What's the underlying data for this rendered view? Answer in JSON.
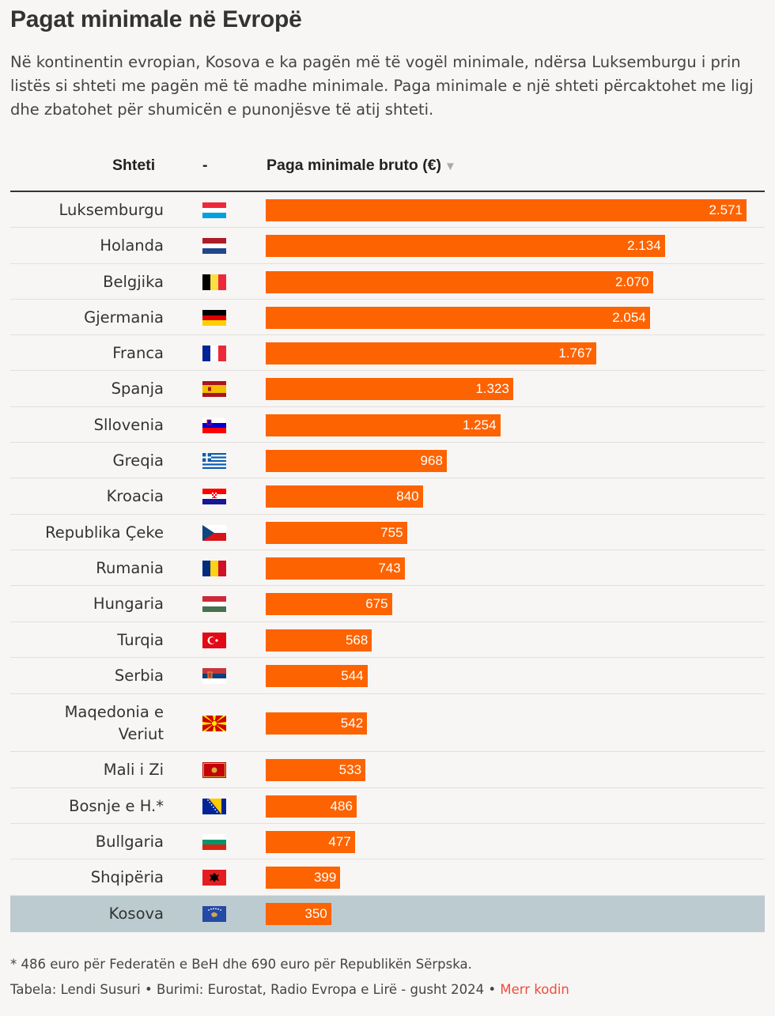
{
  "title": "Pagat minimale në Evropë",
  "subtitle": "Në kontinentin evropian, Kosova e ka pagën më të vogël minimale, ndërsa Luksemburgu i prin listës si shteti me pagën më të madhe minimale. Paga minimale e një shteti përcaktohet me ligj dhe zbatohet për shumicën e punonjësve të atij shteti.",
  "columns": {
    "country": "Shteti",
    "flag": "-",
    "value": "Paga minimale bruto (€)",
    "sort_icon": "sort-descending-icon"
  },
  "chart_data": {
    "type": "bar",
    "orientation": "horizontal",
    "categories": [
      "Luksemburgu",
      "Holanda",
      "Belgjika",
      "Gjermania",
      "Franca",
      "Spanja",
      "Sllovenia",
      "Greqia",
      "Kroacia",
      "Republika Çeke",
      "Rumania",
      "Hungaria",
      "Turqia",
      "Serbia",
      "Maqedonia e Veriut",
      "Mali i Zi",
      "Bosnje e H.*",
      "Bullgaria",
      "Shqipëria",
      "Kosova"
    ],
    "values": [
      2571,
      2134,
      2070,
      2054,
      1767,
      1323,
      1254,
      968,
      840,
      755,
      743,
      675,
      568,
      544,
      542,
      533,
      486,
      477,
      399,
      350
    ],
    "value_labels": [
      "2.571",
      "2.134",
      "2.070",
      "2.054",
      "1.767",
      "1.323",
      "1.254",
      "968",
      "840",
      "755",
      "743",
      "675",
      "568",
      "544",
      "542",
      "533",
      "486",
      "477",
      "399",
      "350"
    ],
    "highlighted": "Kosova",
    "bar_color": "#fd6300",
    "highlight_row_color": "#bccbcf"
  },
  "footnote": "* 486 euro për Federatën e BeH dhe 690 euro për Republikën Sërpska.",
  "credits": {
    "author": "Tabela: Lendi Susuri",
    "source": "Burimi: Eurostat, Radio Evropa e Lirë - gusht 2024",
    "link": "Merr kodin"
  }
}
